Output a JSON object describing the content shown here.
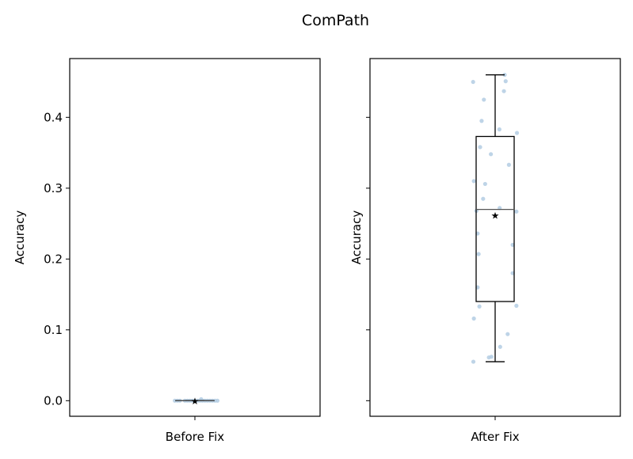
{
  "chart_data": {
    "type": "boxplot",
    "title": "ComPath",
    "ylabel": "Accuracy",
    "ylim": [
      -0.022,
      0.483
    ],
    "yticks": [
      0.0,
      0.1,
      0.2,
      0.3,
      0.4
    ],
    "ytick_labels": [
      "0.0",
      "0.1",
      "0.2",
      "0.3",
      "0.4"
    ],
    "panels": [
      {
        "category": "Before Fix",
        "box": {
          "min": 0.0,
          "q1": 0.0,
          "median": 0.0,
          "q3": 0.0,
          "max": 0.0,
          "mean": 0.0
        },
        "points": [
          {
            "x": 0.92,
            "y": 0.0
          },
          {
            "x": 0.93,
            "y": 0.0
          },
          {
            "x": 0.96,
            "y": 0.0
          },
          {
            "x": 0.97,
            "y": 0.0
          },
          {
            "x": 0.99,
            "y": 0.0
          },
          {
            "x": 1.0,
            "y": 0.0
          },
          {
            "x": 1.01,
            "y": 0.0
          },
          {
            "x": 1.02,
            "y": 0.0
          },
          {
            "x": 1.03,
            "y": 0.0
          },
          {
            "x": 1.04,
            "y": 0.0
          },
          {
            "x": 1.05,
            "y": 0.0
          },
          {
            "x": 1.07,
            "y": 0.0
          },
          {
            "x": 1.08,
            "y": 0.0
          },
          {
            "x": 1.09,
            "y": 0.0
          },
          {
            "x": 0.94,
            "y": 0.0
          },
          {
            "x": 0.98,
            "y": 0.0
          },
          {
            "x": 1.06,
            "y": 0.0
          },
          {
            "x": 1.025,
            "y": 0.002
          }
        ],
        "show_ylabels": true
      },
      {
        "category": "After Fix",
        "box": {
          "min": 0.055,
          "q1": 0.14,
          "median": 0.27,
          "q3": 0.373,
          "max": 0.46,
          "mean": 0.262
        },
        "points": [
          {
            "x": 0.912,
            "y": 0.45
          },
          {
            "x": 1.038,
            "y": 0.46
          },
          {
            "x": 1.042,
            "y": 0.451
          },
          {
            "x": 0.955,
            "y": 0.425
          },
          {
            "x": 1.035,
            "y": 0.437
          },
          {
            "x": 0.946,
            "y": 0.395
          },
          {
            "x": 1.017,
            "y": 0.383
          },
          {
            "x": 1.087,
            "y": 0.378
          },
          {
            "x": 0.94,
            "y": 0.358
          },
          {
            "x": 0.983,
            "y": 0.348
          },
          {
            "x": 1.055,
            "y": 0.333
          },
          {
            "x": 0.915,
            "y": 0.31
          },
          {
            "x": 0.96,
            "y": 0.306
          },
          {
            "x": 0.952,
            "y": 0.285
          },
          {
            "x": 1.018,
            "y": 0.272
          },
          {
            "x": 0.925,
            "y": 0.268
          },
          {
            "x": 1.085,
            "y": 0.267
          },
          {
            "x": 0.93,
            "y": 0.236
          },
          {
            "x": 1.07,
            "y": 0.22
          },
          {
            "x": 0.934,
            "y": 0.207
          },
          {
            "x": 1.07,
            "y": 0.18
          },
          {
            "x": 0.93,
            "y": 0.16
          },
          {
            "x": 0.937,
            "y": 0.133
          },
          {
            "x": 1.085,
            "y": 0.134
          },
          {
            "x": 0.915,
            "y": 0.116
          },
          {
            "x": 1.05,
            "y": 0.094
          },
          {
            "x": 1.02,
            "y": 0.076
          },
          {
            "x": 0.975,
            "y": 0.061
          },
          {
            "x": 0.985,
            "y": 0.062
          },
          {
            "x": 0.913,
            "y": 0.055
          }
        ],
        "show_ylabels": false
      }
    ],
    "point_color": "#b3cde3",
    "box_color": "#000000"
  }
}
